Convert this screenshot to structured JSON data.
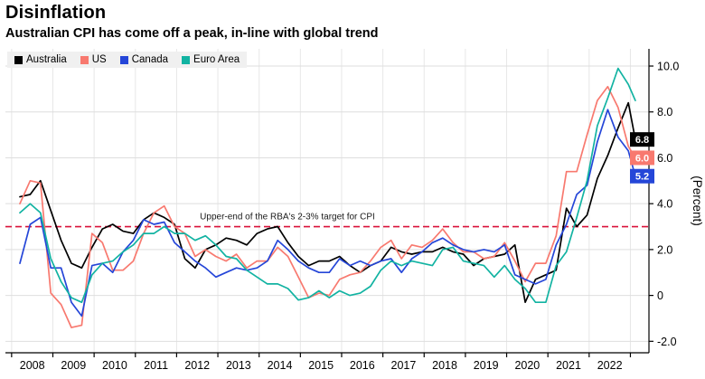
{
  "chart_data": {
    "type": "line",
    "title": "Disinflation",
    "subtitle": "Australian CPI has come off a peak, in-line with global trend",
    "ylabel": "(Percent)",
    "legend_position": "top-left",
    "grid": true,
    "xlim": [
      2007.85,
      2023.45
    ],
    "ylim": [
      -2.5,
      10.75
    ],
    "yticks": [
      10,
      8,
      6,
      4,
      2,
      0,
      -2
    ],
    "ytick_labels": [
      "10.0",
      "8.0",
      "6.0",
      "4.0",
      "2.0",
      "0",
      "-2.0"
    ],
    "xtick_years": [
      "2008",
      "2009",
      "2010",
      "2011",
      "2012",
      "2013",
      "2014",
      "2015",
      "2016",
      "2017",
      "2018",
      "2019",
      "2020",
      "2021",
      "2022"
    ],
    "target_line": {
      "value": 3,
      "color": "#d9123a",
      "label": "Upper-end of the RBA's 2-3% target for CPI"
    },
    "x": [
      2008.2,
      2008.45,
      2008.7,
      2008.95,
      2009.2,
      2009.45,
      2009.7,
      2009.95,
      2010.2,
      2010.45,
      2010.7,
      2010.95,
      2011.2,
      2011.45,
      2011.7,
      2011.95,
      2012.2,
      2012.45,
      2012.7,
      2012.95,
      2013.2,
      2013.45,
      2013.7,
      2013.95,
      2014.2,
      2014.45,
      2014.7,
      2014.95,
      2015.2,
      2015.45,
      2015.7,
      2015.95,
      2016.2,
      2016.45,
      2016.7,
      2016.95,
      2017.2,
      2017.45,
      2017.7,
      2017.95,
      2018.2,
      2018.45,
      2018.7,
      2018.95,
      2019.2,
      2019.45,
      2019.7,
      2019.95,
      2020.2,
      2020.45,
      2020.7,
      2020.95,
      2021.2,
      2021.45,
      2021.7,
      2021.95,
      2022.2,
      2022.45,
      2022.7,
      2022.95,
      2023.12
    ],
    "series": [
      {
        "name": "Australia",
        "color": "#000000",
        "end_label": "6.8",
        "values": [
          4.3,
          4.4,
          5.0,
          3.7,
          2.4,
          1.4,
          1.2,
          2.1,
          2.9,
          3.1,
          2.8,
          2.7,
          3.3,
          3.6,
          3.4,
          3.1,
          1.6,
          1.2,
          2.0,
          2.2,
          2.5,
          2.4,
          2.2,
          2.7,
          2.9,
          3.0,
          2.3,
          1.7,
          1.3,
          1.5,
          1.5,
          1.7,
          1.3,
          1.0,
          1.3,
          1.5,
          2.1,
          1.9,
          1.8,
          1.9,
          1.9,
          2.1,
          1.9,
          1.8,
          1.3,
          1.6,
          1.7,
          1.8,
          2.2,
          -0.3,
          0.7,
          0.9,
          1.1,
          3.8,
          3.0,
          3.5,
          5.1,
          6.1,
          7.3,
          8.4,
          6.8
        ]
      },
      {
        "name": "US",
        "color": "#f8796f",
        "end_label": "6.0",
        "values": [
          4.0,
          5.0,
          4.9,
          0.1,
          -0.4,
          -1.4,
          -1.3,
          2.7,
          2.3,
          1.1,
          1.1,
          1.5,
          2.7,
          3.6,
          3.9,
          3.0,
          2.7,
          1.7,
          2.0,
          1.7,
          1.5,
          1.8,
          1.2,
          1.5,
          1.5,
          2.1,
          1.7,
          0.8,
          -0.1,
          0.1,
          0.0,
          0.7,
          0.9,
          1.0,
          1.5,
          2.1,
          2.4,
          1.6,
          2.2,
          2.1,
          2.4,
          2.9,
          2.3,
          1.9,
          1.9,
          1.6,
          1.7,
          2.3,
          1.5,
          0.6,
          1.4,
          1.4,
          2.6,
          5.4,
          5.4,
          7.0,
          8.5,
          9.1,
          8.2,
          6.5,
          6.0
        ]
      },
      {
        "name": "Canada",
        "color": "#2546d8",
        "end_label": "5.2",
        "values": [
          1.4,
          3.1,
          3.4,
          1.2,
          1.2,
          -0.3,
          -0.9,
          1.3,
          1.4,
          1.0,
          1.9,
          2.4,
          3.3,
          3.1,
          3.2,
          2.3,
          1.9,
          1.5,
          1.2,
          0.8,
          1.0,
          1.2,
          1.1,
          1.2,
          1.5,
          2.4,
          2.0,
          1.5,
          1.2,
          1.0,
          1.0,
          1.6,
          1.3,
          1.5,
          1.3,
          1.5,
          1.6,
          1.0,
          1.6,
          1.9,
          2.3,
          2.5,
          2.2,
          2.0,
          1.9,
          2.0,
          1.9,
          2.2,
          0.9,
          0.7,
          0.5,
          0.7,
          2.2,
          3.1,
          4.4,
          4.8,
          6.7,
          8.1,
          6.9,
          6.3,
          5.2
        ]
      },
      {
        "name": "Euro Area",
        "color": "#12b3a2",
        "end_label": null,
        "values": [
          3.6,
          4.0,
          3.6,
          1.6,
          0.6,
          -0.1,
          -0.3,
          0.9,
          1.4,
          1.5,
          1.9,
          2.2,
          2.7,
          2.7,
          3.0,
          2.7,
          2.7,
          2.4,
          2.6,
          2.2,
          1.7,
          1.6,
          1.1,
          0.8,
          0.5,
          0.5,
          0.3,
          -0.2,
          -0.1,
          0.2,
          -0.1,
          0.2,
          0.0,
          0.1,
          0.4,
          1.1,
          1.5,
          1.3,
          1.5,
          1.4,
          1.3,
          2.0,
          2.1,
          1.5,
          1.4,
          1.3,
          0.8,
          1.3,
          0.7,
          0.3,
          -0.3,
          -0.3,
          1.3,
          1.9,
          3.4,
          5.0,
          7.4,
          8.6,
          9.9,
          9.2,
          8.5
        ]
      }
    ]
  }
}
